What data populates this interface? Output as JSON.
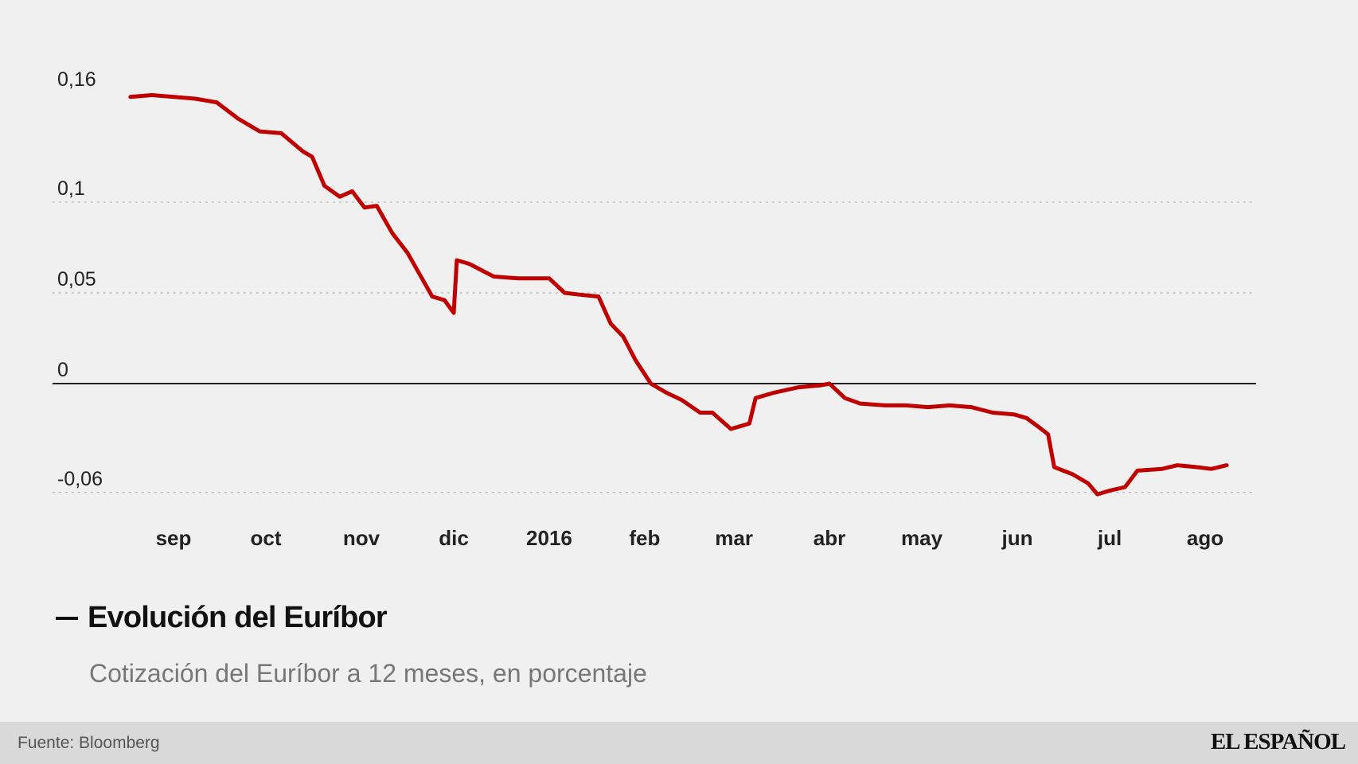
{
  "chart_data": {
    "type": "line",
    "title": "Evolución del Euríbor",
    "subtitle": "Cotización del Euríbor a 12 meses, en porcentaje",
    "source": "Fuente: Bloomberg",
    "brand": "EL ESPAÑOL",
    "color": "#c00000",
    "ylim": [
      -0.065,
      0.165
    ],
    "yticks": [
      {
        "value": 0.16,
        "label": "0,16"
      },
      {
        "value": 0.1,
        "label": "0,1"
      },
      {
        "value": 0.05,
        "label": "0,05"
      },
      {
        "value": 0,
        "label": "0"
      },
      {
        "value": -0.06,
        "label": "-0,06"
      }
    ],
    "xticks": [
      {
        "date": "2015-09-15",
        "label": "sep"
      },
      {
        "date": "2015-10-15",
        "label": "oct"
      },
      {
        "date": "2015-11-15",
        "label": "nov"
      },
      {
        "date": "2015-12-15",
        "label": "dic"
      },
      {
        "date": "2016-01-15",
        "label": "2016"
      },
      {
        "date": "2016-02-15",
        "label": "feb"
      },
      {
        "date": "2016-03-15",
        "label": "mar"
      },
      {
        "date": "2016-04-15",
        "label": "abr"
      },
      {
        "date": "2016-05-15",
        "label": "may"
      },
      {
        "date": "2016-06-15",
        "label": "jun"
      },
      {
        "date": "2016-07-15",
        "label": "jul"
      },
      {
        "date": "2016-08-15",
        "label": "ago"
      }
    ],
    "grid": "dotted-horizontal",
    "series": [
      {
        "points": [
          [
            "2015-09-01",
            0.158
          ],
          [
            "2015-09-08",
            0.159
          ],
          [
            "2015-09-15",
            0.158
          ],
          [
            "2015-09-22",
            0.157
          ],
          [
            "2015-09-29",
            0.155
          ],
          [
            "2015-10-06",
            0.146
          ],
          [
            "2015-10-13",
            0.139
          ],
          [
            "2015-10-20",
            0.138
          ],
          [
            "2015-10-27",
            0.128
          ],
          [
            "2015-10-30",
            0.125
          ],
          [
            "2015-11-03",
            0.109
          ],
          [
            "2015-11-08",
            0.103
          ],
          [
            "2015-11-12",
            0.106
          ],
          [
            "2015-11-16",
            0.097
          ],
          [
            "2015-11-20",
            0.098
          ],
          [
            "2015-11-25",
            0.083
          ],
          [
            "2015-11-30",
            0.072
          ],
          [
            "2015-12-04",
            0.06
          ],
          [
            "2015-12-08",
            0.048
          ],
          [
            "2015-12-12",
            0.046
          ],
          [
            "2015-12-15",
            0.039
          ],
          [
            "2015-12-16",
            0.068
          ],
          [
            "2015-12-20",
            0.066
          ],
          [
            "2015-12-28",
            0.059
          ],
          [
            "2016-01-05",
            0.058
          ],
          [
            "2016-01-15",
            0.058
          ],
          [
            "2016-01-20",
            0.05
          ],
          [
            "2016-01-25",
            0.049
          ],
          [
            "2016-01-31",
            0.048
          ],
          [
            "2016-02-04",
            0.033
          ],
          [
            "2016-02-08",
            0.026
          ],
          [
            "2016-02-12",
            0.013
          ],
          [
            "2016-02-17",
            0.0
          ],
          [
            "2016-02-22",
            -0.005
          ],
          [
            "2016-02-27",
            -0.009
          ],
          [
            "2016-03-04",
            -0.016
          ],
          [
            "2016-03-08",
            -0.016
          ],
          [
            "2016-03-14",
            -0.025
          ],
          [
            "2016-03-20",
            -0.022
          ],
          [
            "2016-03-22",
            -0.008
          ],
          [
            "2016-03-28",
            -0.005
          ],
          [
            "2016-04-05",
            -0.002
          ],
          [
            "2016-04-12",
            -0.001
          ],
          [
            "2016-04-15",
            0.0
          ],
          [
            "2016-04-20",
            -0.008
          ],
          [
            "2016-04-25",
            -0.011
          ],
          [
            "2016-05-03",
            -0.012
          ],
          [
            "2016-05-10",
            -0.012
          ],
          [
            "2016-05-17",
            -0.013
          ],
          [
            "2016-05-24",
            -0.012
          ],
          [
            "2016-05-31",
            -0.013
          ],
          [
            "2016-06-07",
            -0.016
          ],
          [
            "2016-06-14",
            -0.017
          ],
          [
            "2016-06-18",
            -0.019
          ],
          [
            "2016-06-22",
            -0.024
          ],
          [
            "2016-06-25",
            -0.028
          ],
          [
            "2016-06-27",
            -0.046
          ],
          [
            "2016-07-03",
            -0.05
          ],
          [
            "2016-07-08",
            -0.055
          ],
          [
            "2016-07-11",
            -0.061
          ],
          [
            "2016-07-15",
            -0.059
          ],
          [
            "2016-07-20",
            -0.057
          ],
          [
            "2016-07-24",
            -0.048
          ],
          [
            "2016-08-01",
            -0.047
          ],
          [
            "2016-08-06",
            -0.045
          ],
          [
            "2016-08-12",
            -0.046
          ],
          [
            "2016-08-17",
            -0.047
          ],
          [
            "2016-08-22",
            -0.045
          ]
        ]
      }
    ]
  }
}
